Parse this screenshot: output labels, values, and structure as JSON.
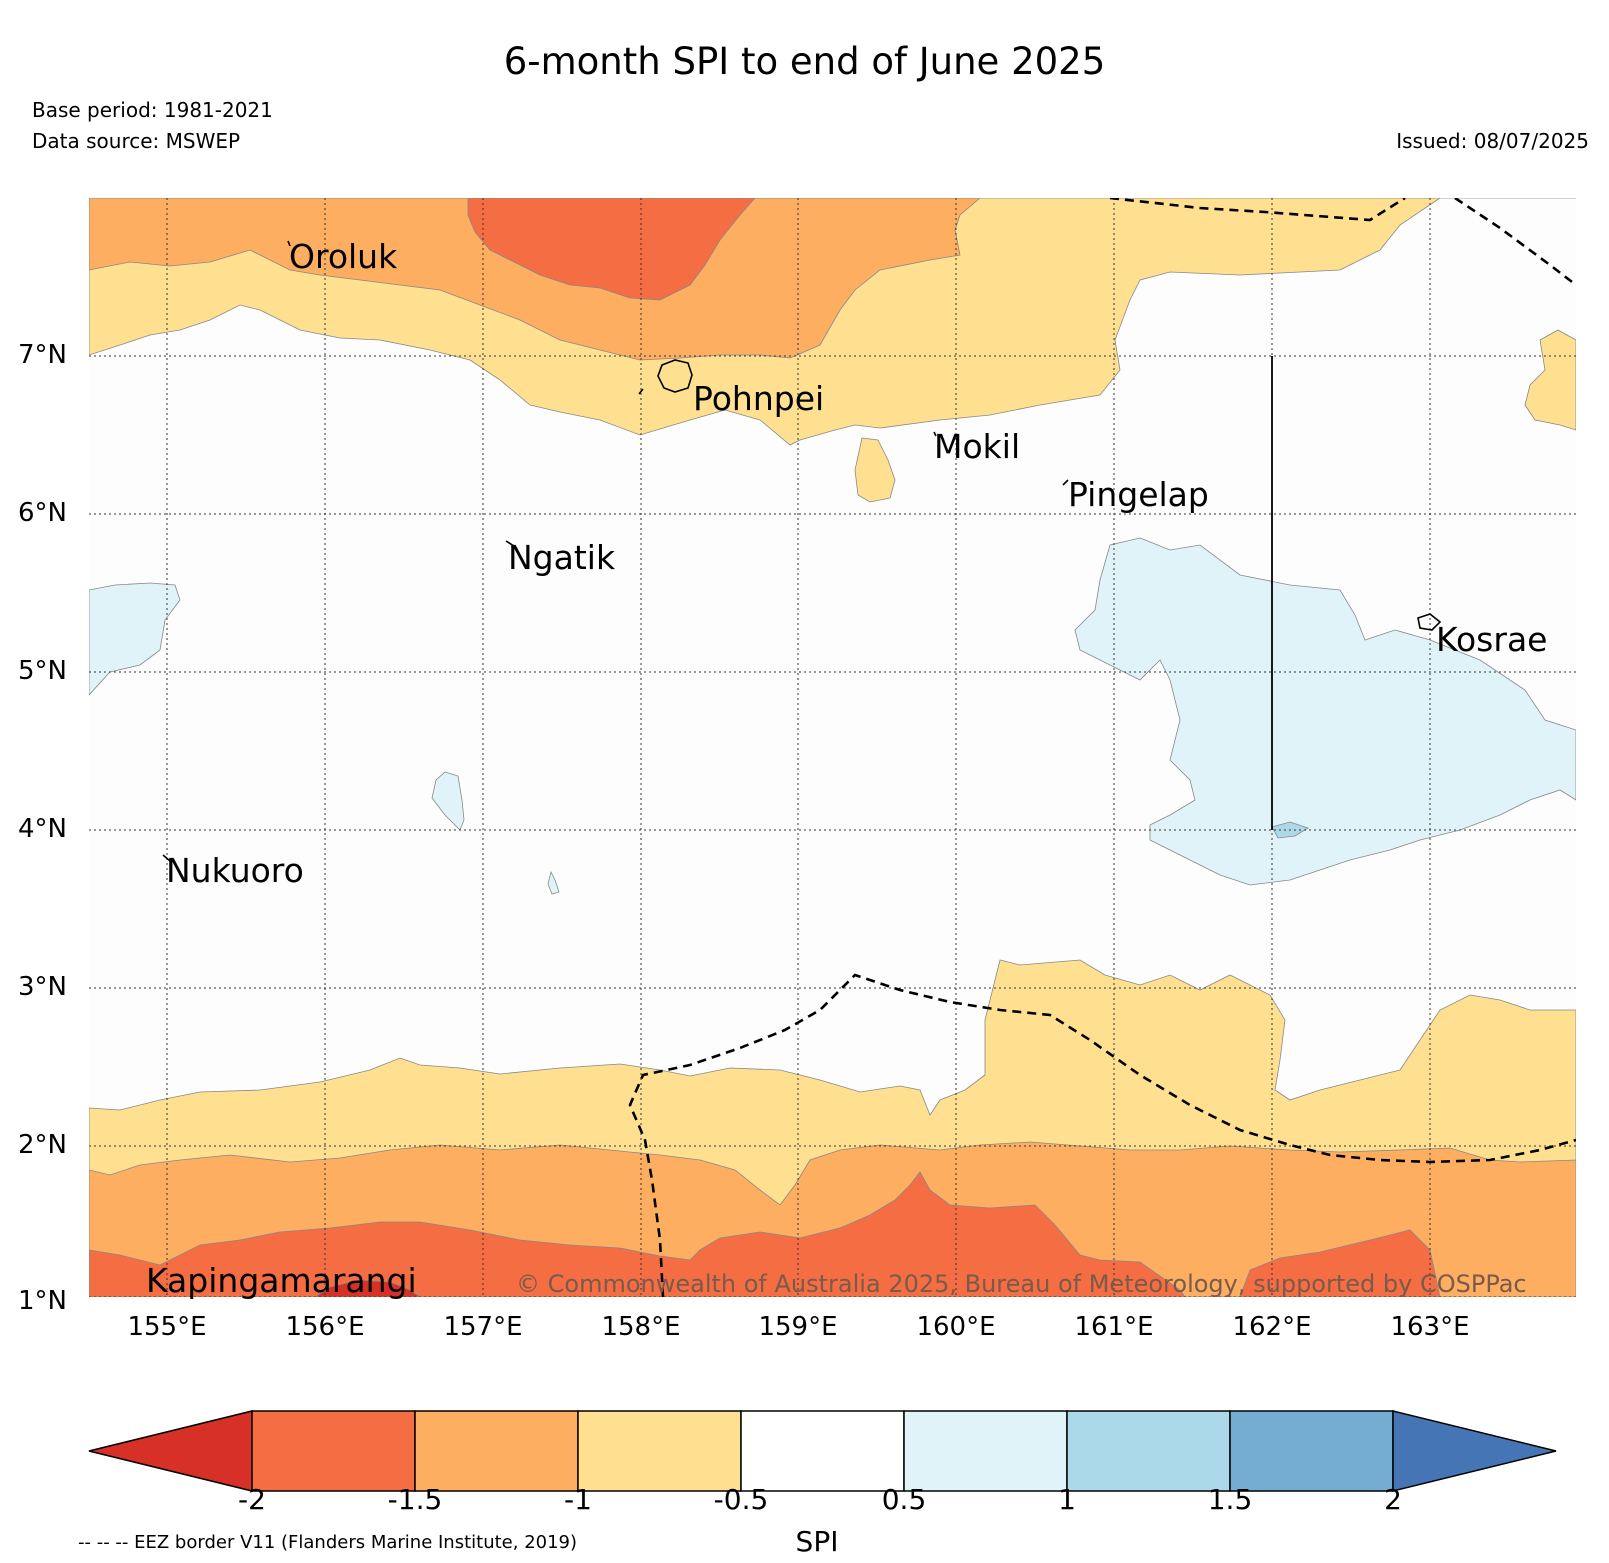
{
  "header": {
    "title": "6-month SPI to end of June 2025",
    "base_period": "Base period: 1981-2021",
    "data_source": "Data source: MSWEP",
    "issued": "Issued: 08/07/2025"
  },
  "map": {
    "lon_labels": [
      "155°E",
      "156°E",
      "157°E",
      "158°E",
      "159°E",
      "160°E",
      "161°E",
      "162°E",
      "163°E"
    ],
    "lat_labels": [
      "7°N",
      "6°N",
      "5°N",
      "4°N",
      "3°N",
      "2°N",
      "1°N"
    ],
    "places": [
      "Oroluk",
      "Pohnpei",
      "Mokil",
      "Pingelap",
      "Ngatik",
      "Kosrae",
      "Nukuoro",
      "Kapingamarangi"
    ],
    "copyright": "© Commonwealth of Australia 2025, Bureau of Meteorology, supported by COSPPac",
    "colors": {
      "below_-2": "#d73027",
      "-2_to_-1.5": "#f46d43",
      "-1.5_to_-1": "#fdae61",
      "-1_to_-0.5": "#fee090",
      "-0.5_to_0.5": "#ffffff",
      "0.5_to_1": "#e0f3f8",
      "1_to_1.5": "#abd9e9",
      "1.5_to_2": "#74add1",
      "above_2": "#4575b4"
    }
  },
  "colorbar": {
    "label": "SPI",
    "ticks": [
      "-2",
      "-1.5",
      "-1",
      "-0.5",
      "0.5",
      "1",
      "1.5",
      "2"
    ]
  },
  "footnote": "-- -- -- EEZ border V11 (Flanders Marine Institute, 2019)"
}
